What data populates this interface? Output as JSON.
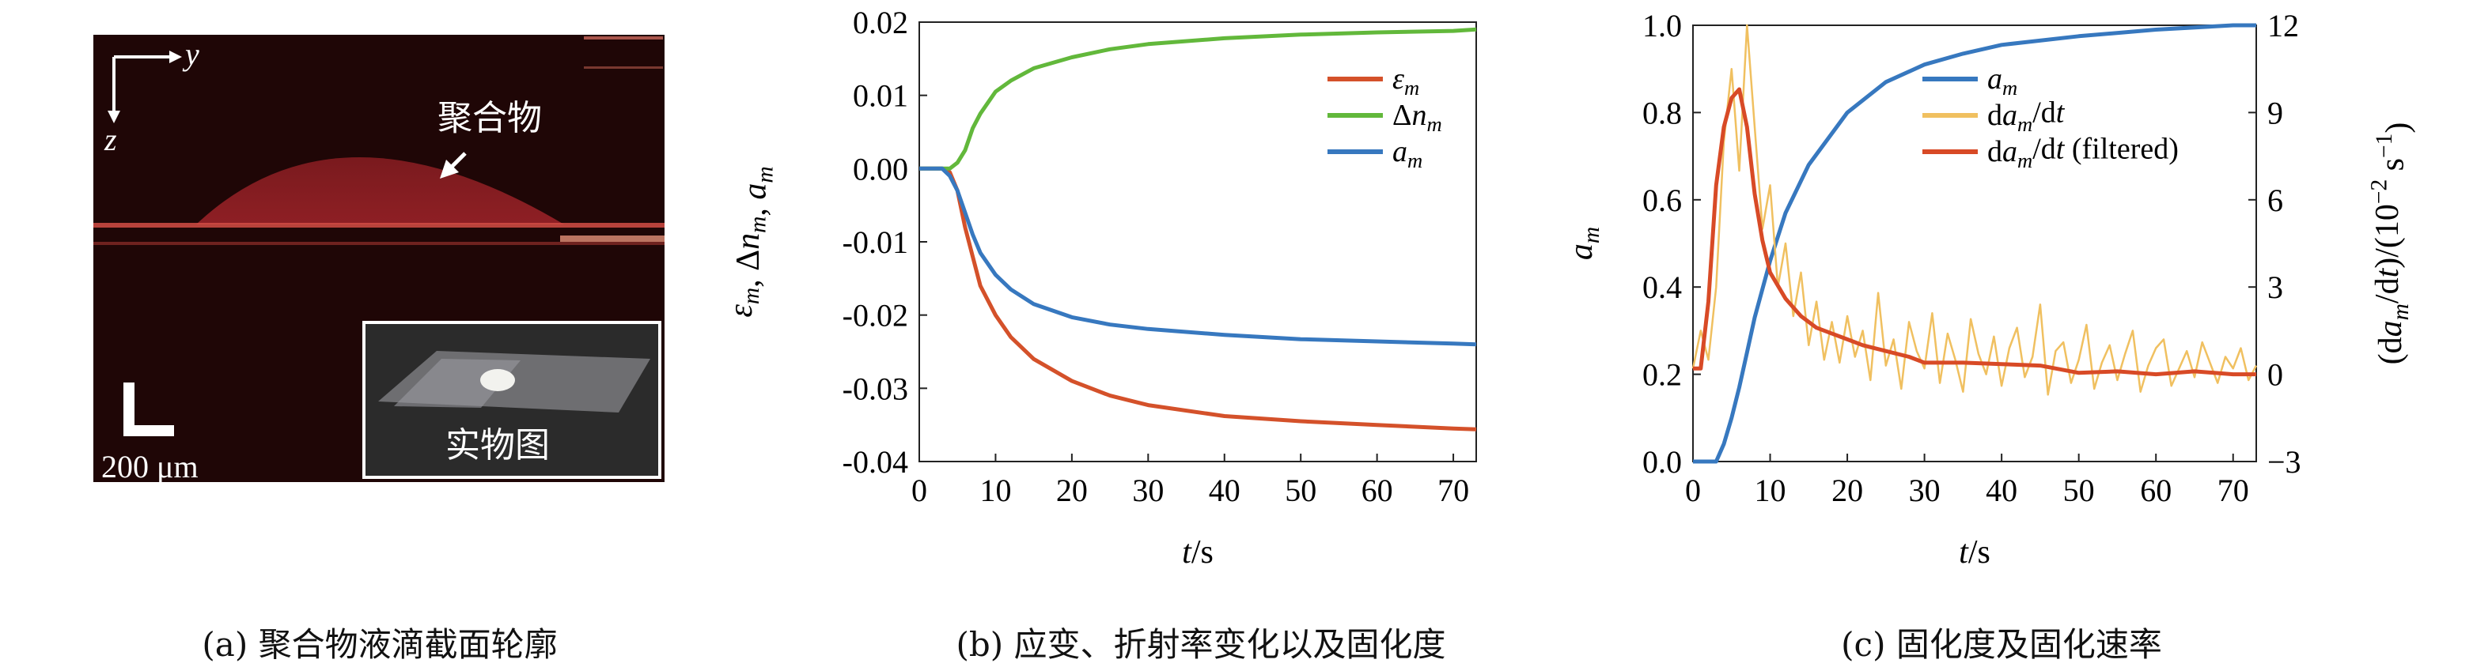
{
  "panel_a": {
    "axis_y": "y",
    "axis_z": "z",
    "polymer_label": "聚合物",
    "scale_label": "200 μm",
    "inset_label": "实物图",
    "caption": "(a) 聚合物液滴截面轮廓"
  },
  "colors": {
    "strain": "#d4512a",
    "refractive": "#62b83b",
    "cure": "#3778bf",
    "rate_raw": "#f0c060",
    "rate_filtered": "#d84a26"
  },
  "chart_data": [
    {
      "type": "line",
      "ylabel": "εm, Δnm, am",
      "xlabel": "t/s",
      "caption": "(b) 应变、折射率变化以及固化度",
      "xlim": [
        0,
        73
      ],
      "ylim": [
        -0.04,
        0.02
      ],
      "xticks": [
        "0",
        "10",
        "20",
        "30",
        "40",
        "50",
        "60",
        "70"
      ],
      "yticks": [
        "0.02",
        "0.01",
        "0.00",
        "-0.01",
        "-0.02",
        "-0.03",
        "-0.04"
      ],
      "legend_position": "top-right",
      "series": [
        {
          "name": "εm",
          "color_key": "strain",
          "x": [
            0,
            2,
            3,
            4,
            5,
            6,
            7,
            8,
            10,
            12,
            15,
            20,
            25,
            30,
            40,
            50,
            60,
            70,
            73
          ],
          "y": [
            0,
            0,
            0,
            -0.0005,
            -0.003,
            -0.008,
            -0.012,
            -0.016,
            -0.02,
            -0.023,
            -0.026,
            -0.029,
            -0.031,
            -0.0323,
            -0.0338,
            -0.0345,
            -0.035,
            -0.0355,
            -0.0356
          ]
        },
        {
          "name": "Δnm",
          "color_key": "refractive",
          "x": [
            0,
            2,
            4,
            5,
            6,
            7,
            8,
            10,
            12,
            15,
            20,
            25,
            30,
            40,
            50,
            60,
            70,
            73
          ],
          "y": [
            0,
            0,
            0,
            0.0008,
            0.0025,
            0.0055,
            0.0075,
            0.0105,
            0.012,
            0.0137,
            0.0152,
            0.0163,
            0.017,
            0.0178,
            0.0183,
            0.0186,
            0.0188,
            0.019
          ]
        },
        {
          "name": "am",
          "color_key": "cure",
          "x": [
            0,
            2,
            3,
            4,
            5,
            6,
            7,
            8,
            10,
            12,
            15,
            20,
            25,
            30,
            40,
            50,
            60,
            70,
            73
          ],
          "y": [
            0,
            0,
            0,
            -0.001,
            -0.003,
            -0.006,
            -0.009,
            -0.0115,
            -0.0145,
            -0.0165,
            -0.0185,
            -0.0203,
            -0.0213,
            -0.0219,
            -0.0227,
            -0.0233,
            -0.0236,
            -0.0239,
            -0.024
          ]
        }
      ]
    },
    {
      "type": "line",
      "ylabel": "am",
      "ylabel_right": "(dam/dt)/(10−2 s−1)",
      "xlabel": "t/s",
      "caption": "(c) 固化度及固化速率",
      "xlim": [
        0,
        73
      ],
      "ylim": [
        0,
        1
      ],
      "ylim_right": [
        -3,
        12
      ],
      "xticks": [
        "0",
        "10",
        "20",
        "30",
        "40",
        "50",
        "60",
        "70"
      ],
      "yticks": [
        "1.0",
        "0.8",
        "0.6",
        "0.4",
        "0.2",
        "0.0"
      ],
      "yticks_right": [
        "12",
        "9",
        "6",
        "3",
        "0",
        "−3"
      ],
      "legend_position": "top-right",
      "series": [
        {
          "name": "am",
          "color_key": "cure",
          "axis": "left",
          "x": [
            0,
            1,
            2,
            3,
            4,
            5,
            6,
            7,
            8,
            10,
            12,
            15,
            20,
            25,
            30,
            35,
            40,
            50,
            60,
            70,
            73
          ],
          "y": [
            0,
            0,
            0,
            0,
            0.04,
            0.1,
            0.17,
            0.25,
            0.33,
            0.46,
            0.57,
            0.68,
            0.8,
            0.87,
            0.91,
            0.935,
            0.955,
            0.975,
            0.99,
            1.0,
            1.0
          ]
        },
        {
          "name": "dam/dt",
          "color_key": "rate_raw",
          "axis": "right",
          "x": [
            0,
            1,
            2,
            3,
            4,
            5,
            6,
            7,
            8,
            9,
            10,
            11,
            12,
            13,
            14,
            15,
            16,
            17,
            18,
            19,
            20,
            21,
            22,
            23,
            24,
            25,
            26,
            27,
            28,
            29,
            30,
            31,
            32,
            33,
            34,
            35,
            36,
            37,
            38,
            39,
            40,
            41,
            42,
            43,
            44,
            45,
            46,
            47,
            48,
            49,
            50,
            51,
            52,
            53,
            54,
            55,
            56,
            57,
            58,
            59,
            60,
            61,
            62,
            63,
            64,
            65,
            66,
            67,
            68,
            69,
            70,
            71,
            72,
            73
          ],
          "y": [
            0.2,
            1.5,
            0.5,
            3,
            8,
            10.5,
            7,
            12,
            8.5,
            5,
            6.5,
            3,
            4.5,
            2,
            3.5,
            1,
            2.5,
            0.5,
            1.8,
            0.4,
            2,
            0.6,
            1.5,
            -0.2,
            2.8,
            0.3,
            1.2,
            -0.5,
            1.8,
            0.8,
            0.2,
            2.1,
            -0.3,
            1.4,
            0.5,
            -0.6,
            1.9,
            0.7,
            0,
            1.3,
            -0.4,
            0.9,
            1.6,
            -0.1,
            0.6,
            2.4,
            -0.7,
            0.8,
            1.1,
            -0.3,
            0.5,
            1.7,
            -0.5,
            0.4,
            1,
            -0.2,
            0.7,
            1.5,
            -0.6,
            0.3,
            0.9,
            1.2,
            -0.4,
            0.2,
            0.8,
            -0.1,
            1.1,
            0.4,
            -0.3,
            0.6,
            0.2,
            0.9,
            -0.2,
            0.3
          ]
        },
        {
          "name": "dam/dt (filtered)",
          "color_key": "rate_filtered",
          "axis": "right",
          "x": [
            0,
            1,
            2,
            3,
            4,
            5,
            6,
            7,
            8,
            9,
            10,
            12,
            14,
            16,
            18,
            20,
            22,
            25,
            28,
            30,
            35,
            40,
            45,
            50,
            55,
            60,
            65,
            70,
            73
          ],
          "y": [
            0.2,
            0.2,
            2.5,
            6.5,
            8.5,
            9.5,
            9.8,
            8.5,
            6.2,
            4.6,
            3.5,
            2.6,
            2.0,
            1.6,
            1.4,
            1.2,
            1.0,
            0.8,
            0.6,
            0.4,
            0.4,
            0.35,
            0.3,
            0.05,
            0.1,
            0,
            0.1,
            0,
            0
          ]
        }
      ]
    }
  ]
}
